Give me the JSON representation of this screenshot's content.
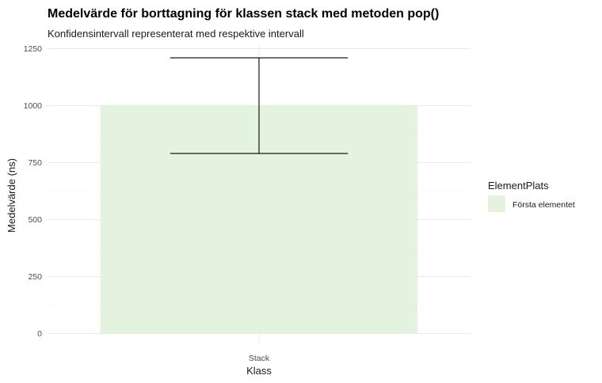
{
  "chart_data": {
    "type": "bar",
    "title": "Medelvärde för borttagning för klassen stack med metoden pop()",
    "subtitle": "Konfidensintervall representerat med respektive intervall",
    "xlabel": "Klass",
    "ylabel": "Medelvärde (ns)",
    "categories": [
      "Stack"
    ],
    "series": [
      {
        "name": "Första elementet",
        "values": [
          1003
        ],
        "error_low": [
          790
        ],
        "error_high": [
          1210
        ]
      }
    ],
    "ylim": [
      0,
      1300
    ],
    "yticks": [
      0,
      250,
      500,
      750,
      1000,
      1250
    ],
    "ytick_labels": [
      "0",
      "250",
      "500",
      "750",
      "1000",
      "1250"
    ],
    "grid": true,
    "legend": {
      "title": "ElementPlats",
      "position": "right"
    },
    "colors": {
      "bar": "#e3f3df",
      "error_bar": "#000000",
      "grid_major": "#ebebeb",
      "grid_minor": "#f5f5f5"
    }
  }
}
